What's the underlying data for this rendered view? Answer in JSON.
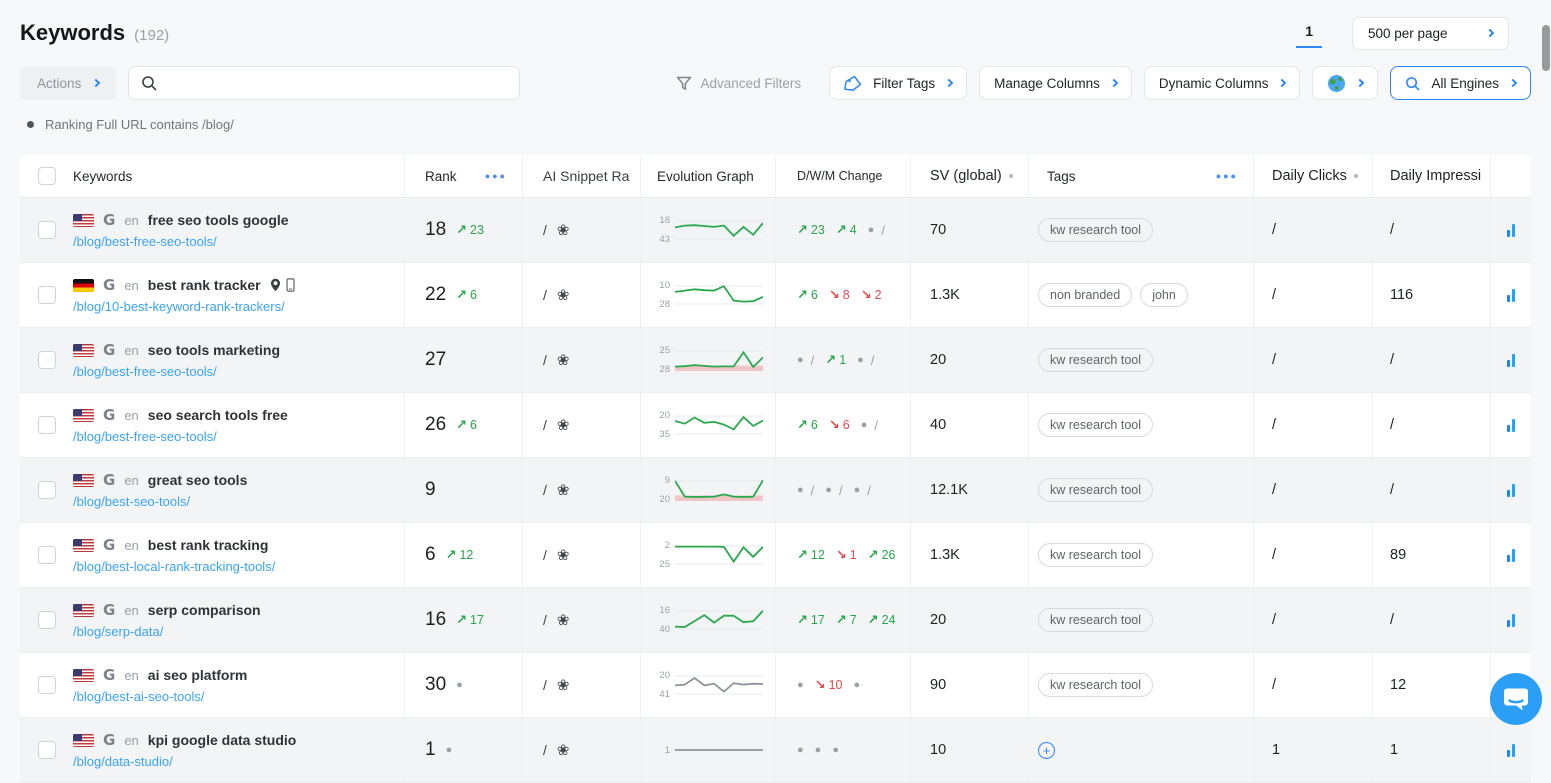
{
  "app": {
    "title": "Keywords",
    "count": "(192)"
  },
  "pagination": {
    "current_page": "1",
    "per_page": "500 per page"
  },
  "toolbar": {
    "actions": "Actions",
    "search_placeholder": "",
    "advanced_filters": "Advanced Filters",
    "filter_tags": "Filter Tags",
    "manage_columns": "Manage Columns",
    "dynamic_columns": "Dynamic Columns",
    "all_engines": "All Engines"
  },
  "active_filter": "Ranking Full URL contains /blog/",
  "table": {
    "headers": {
      "keywords": "Keywords",
      "rank": "Rank",
      "ai_snippet": "AI Snippet Ra",
      "evolution": "Evolution Graph",
      "dwm": "D/W/M Change",
      "sv": "SV (global)",
      "tags": "Tags",
      "daily_clicks": "Daily Clicks",
      "daily_impressions": "Daily Impressi"
    },
    "rows": [
      {
        "flag": "us",
        "lang": "en",
        "keyword": "free seo tools google",
        "has_pin": false,
        "has_mobile": false,
        "url": "/blog/best-free-seo-tools/",
        "rank": "18",
        "rank_change": {
          "type": "up",
          "value": "23"
        },
        "ai_snippet": "/",
        "graph": {
          "top_label": "18",
          "bottom_label": "43",
          "color": "green",
          "fill": false,
          "points": [
            38,
            30,
            28,
            32,
            36,
            30,
            76,
            36,
            72,
            18
          ]
        },
        "dwm": [
          {
            "type": "up",
            "value": "23"
          },
          {
            "type": "up",
            "value": "4"
          },
          {
            "type": "dot",
            "slash": true
          }
        ],
        "sv": "70",
        "tags": [
          "kw research tool"
        ],
        "tags_add": false,
        "daily_clicks": "/",
        "daily_impressions": "/"
      },
      {
        "flag": "de",
        "lang": "en",
        "keyword": "best rank tracker",
        "has_pin": true,
        "has_mobile": true,
        "url": "/blog/10-best-keyword-rank-trackers/",
        "rank": "22",
        "rank_change": {
          "type": "up",
          "value": "6"
        },
        "ai_snippet": "/",
        "graph": {
          "top_label": "10",
          "bottom_label": "28",
          "color": "green",
          "fill": false,
          "points": [
            36,
            30,
            24,
            28,
            30,
            10,
            76,
            80,
            78,
            58
          ]
        },
        "dwm": [
          {
            "type": "up",
            "value": "6"
          },
          {
            "type": "down",
            "value": "8"
          },
          {
            "type": "down",
            "value": "2"
          }
        ],
        "sv": "1.3K",
        "tags": [
          "non branded",
          "john"
        ],
        "tags_add": false,
        "daily_clicks": "/",
        "daily_impressions": "116"
      },
      {
        "flag": "us",
        "lang": "en",
        "keyword": "seo tools marketing",
        "has_pin": false,
        "has_mobile": false,
        "url": "/blog/best-free-seo-tools/",
        "rank": "27",
        "rank_change": {
          "type": "none"
        },
        "ai_snippet": "/",
        "graph": {
          "top_label": "25",
          "bottom_label": "28",
          "color": "green",
          "fill": true,
          "points": [
            80,
            78,
            73,
            77,
            80,
            79,
            79,
            15,
            82,
            38
          ]
        },
        "dwm": [
          {
            "type": "dot",
            "slash": true
          },
          {
            "type": "up",
            "value": "1"
          },
          {
            "type": "dot",
            "slash": true
          }
        ],
        "sv": "20",
        "tags": [
          "kw research tool"
        ],
        "tags_add": false,
        "daily_clicks": "/",
        "daily_impressions": "/"
      },
      {
        "flag": "us",
        "lang": "en",
        "keyword": "seo search tools free",
        "has_pin": false,
        "has_mobile": false,
        "url": "/blog/best-free-seo-tools/",
        "rank": "26",
        "rank_change": {
          "type": "up",
          "value": "6"
        },
        "ai_snippet": "/",
        "graph": {
          "top_label": "20",
          "bottom_label": "35",
          "color": "green",
          "fill": false,
          "points": [
            32,
            44,
            16,
            40,
            36,
            48,
            70,
            14,
            54,
            30
          ]
        },
        "dwm": [
          {
            "type": "up",
            "value": "6"
          },
          {
            "type": "down",
            "value": "6"
          },
          {
            "type": "dot",
            "slash": true
          }
        ],
        "sv": "40",
        "tags": [
          "kw research tool"
        ],
        "tags_add": false,
        "daily_clicks": "/",
        "daily_impressions": "/"
      },
      {
        "flag": "us",
        "lang": "en",
        "keyword": "great seo tools",
        "has_pin": false,
        "has_mobile": false,
        "url": "/blog/best-seo-tools/",
        "rank": "9",
        "rank_change": {
          "type": "none"
        },
        "ai_snippet": "/",
        "graph": {
          "top_label": "9",
          "bottom_label": "20",
          "color": "green",
          "fill": true,
          "points": [
            8,
            80,
            82,
            81,
            80,
            70,
            80,
            82,
            80,
            6
          ]
        },
        "dwm": [
          {
            "type": "dot",
            "slash": true
          },
          {
            "type": "dot",
            "slash": true
          },
          {
            "type": "dot",
            "slash": true
          }
        ],
        "sv": "12.1K",
        "tags": [
          "kw research tool"
        ],
        "tags_add": false,
        "daily_clicks": "/",
        "daily_impressions": "/"
      },
      {
        "flag": "us",
        "lang": "en",
        "keyword": "best rank tracking",
        "has_pin": false,
        "has_mobile": false,
        "url": "/blog/best-local-rank-tracking-tools/",
        "rank": "6",
        "rank_change": {
          "type": "up",
          "value": "12"
        },
        "ai_snippet": "/",
        "graph": {
          "top_label": "2",
          "bottom_label": "25",
          "color": "green",
          "fill": false,
          "points": [
            12,
            12,
            12,
            12,
            12,
            13,
            80,
            15,
            58,
            13
          ]
        },
        "dwm": [
          {
            "type": "up",
            "value": "12"
          },
          {
            "type": "down",
            "value": "1"
          },
          {
            "type": "up",
            "value": "26"
          }
        ],
        "sv": "1.3K",
        "tags": [
          "kw research tool"
        ],
        "tags_add": false,
        "daily_clicks": "/",
        "daily_impressions": "89"
      },
      {
        "flag": "us",
        "lang": "en",
        "keyword": "serp comparison",
        "has_pin": false,
        "has_mobile": false,
        "url": "/blog/serp-data/",
        "rank": "16",
        "rank_change": {
          "type": "up",
          "value": "17"
        },
        "ai_snippet": "/",
        "graph": {
          "top_label": "16",
          "bottom_label": "40",
          "color": "green",
          "fill": false,
          "points": [
            80,
            82,
            55,
            28,
            62,
            30,
            31,
            60,
            56,
            8
          ]
        },
        "dwm": [
          {
            "type": "up",
            "value": "17"
          },
          {
            "type": "up",
            "value": "7"
          },
          {
            "type": "up",
            "value": "24"
          }
        ],
        "sv": "20",
        "tags": [
          "kw research tool"
        ],
        "tags_add": false,
        "daily_clicks": "/",
        "daily_impressions": "/"
      },
      {
        "flag": "us",
        "lang": "en",
        "keyword": "ai seo platform",
        "has_pin": false,
        "has_mobile": false,
        "url": "/blog/best-ai-seo-tools/",
        "rank": "30",
        "rank_change": {
          "type": "dot"
        },
        "ai_snippet": "/",
        "graph": {
          "top_label": "20",
          "bottom_label": "41",
          "color": "gray",
          "fill": false,
          "points": [
            52,
            48,
            18,
            52,
            44,
            80,
            42,
            48,
            44,
            46
          ]
        },
        "dwm": [
          {
            "type": "dot"
          },
          {
            "type": "down",
            "value": "10"
          },
          {
            "type": "dot"
          }
        ],
        "sv": "90",
        "tags": [
          "kw research tool"
        ],
        "tags_add": false,
        "daily_clicks": "/",
        "daily_impressions": "12"
      },
      {
        "flag": "us",
        "lang": "en",
        "keyword": "kpi google data studio",
        "has_pin": false,
        "has_mobile": false,
        "url": "/blog/data-studio/",
        "rank": "1",
        "rank_change": {
          "type": "dot"
        },
        "ai_snippet": "/",
        "graph": {
          "top_label": "1",
          "bottom_label": "",
          "color": "gray",
          "fill": false,
          "grid": false,
          "center_label": true,
          "points": [
            50,
            50
          ]
        },
        "dwm": [
          {
            "type": "dot"
          },
          {
            "type": "dot"
          },
          {
            "type": "dot"
          }
        ],
        "sv": "10",
        "tags": [],
        "tags_add": true,
        "daily_clicks": "1",
        "daily_impressions": "1"
      }
    ]
  },
  "colors": {
    "accent": "#2f86f5",
    "green": "#27a74a",
    "red": "#e5484d",
    "link": "#3aa3f5",
    "muted": "#9aa0a6",
    "spark_green": "#2aa84e",
    "spark_gray": "#8e9499",
    "spark_band": "rgba(240,160,160,0.55)"
  }
}
